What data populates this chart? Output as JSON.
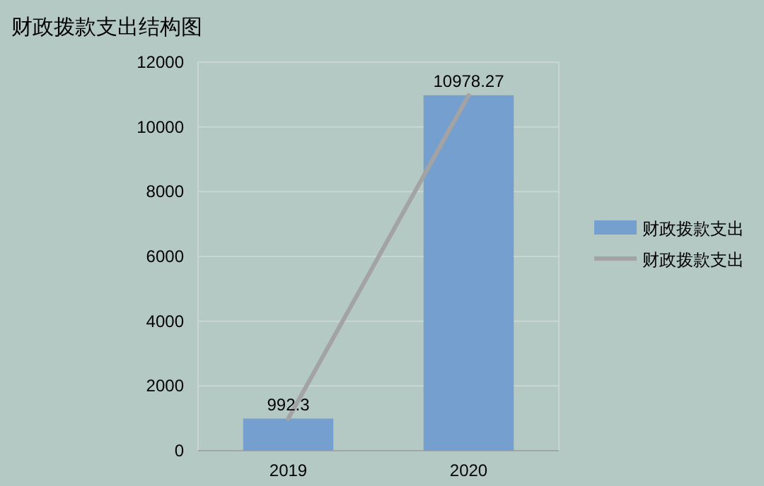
{
  "chart_data": {
    "type": "bar",
    "title": "财政拨款支出结构图",
    "categories": [
      "2019",
      "2020"
    ],
    "series": [
      {
        "name": "财政拨款支出",
        "color": "#759fcf",
        "values": [
          992.3,
          10978.27
        ],
        "value_labels": [
          "992.3",
          "10978.27"
        ]
      },
      {
        "name": "财政拨款支出",
        "type": "line",
        "color": "#a3a3a3",
        "values": [
          992.3,
          10978.27
        ]
      }
    ],
    "ylim": [
      0,
      12000
    ],
    "yticks": [
      0,
      2000,
      4000,
      6000,
      8000,
      10000,
      12000
    ],
    "grid": "y",
    "legend": "right"
  }
}
